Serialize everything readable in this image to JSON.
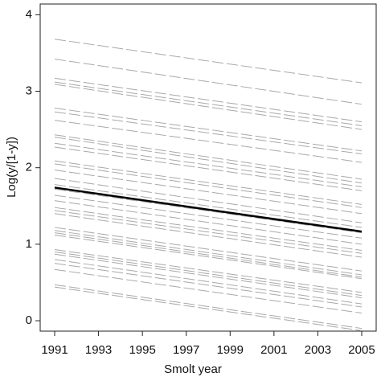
{
  "chart_data": {
    "type": "line",
    "x_label": "Smolt year",
    "y_label": "Log(y/[1-y])",
    "x": [
      1991,
      2005
    ],
    "xlim": [
      1990.34,
      2005.66
    ],
    "ylim": [
      -0.136,
      4.14
    ],
    "xticks": [
      1991,
      1993,
      1995,
      1997,
      1999,
      2001,
      2003,
      2005
    ],
    "yticks": [
      0,
      1,
      2,
      3,
      4
    ],
    "line_color": "#a8a8a8",
    "dashed": true,
    "series": [
      {
        "values": [
          3.68,
          3.11
        ]
      },
      {
        "values": [
          3.42,
          2.83
        ]
      },
      {
        "values": [
          3.17,
          2.6
        ]
      },
      {
        "values": [
          3.12,
          2.55
        ]
      },
      {
        "values": [
          3.09,
          2.5
        ]
      },
      {
        "values": [
          2.78,
          2.22
        ]
      },
      {
        "values": [
          2.73,
          2.18
        ]
      },
      {
        "values": [
          2.62,
          2.07
        ]
      },
      {
        "values": [
          2.43,
          1.85
        ]
      },
      {
        "values": [
          2.4,
          1.8
        ]
      },
      {
        "values": [
          2.32,
          1.75
        ]
      },
      {
        "values": [
          2.27,
          1.7
        ]
      },
      {
        "values": [
          2.09,
          1.52
        ]
      },
      {
        "values": [
          2.05,
          1.48
        ]
      },
      {
        "values": [
          1.97,
          1.4
        ]
      },
      {
        "values": [
          1.86,
          1.28
        ]
      },
      {
        "values": [
          1.78,
          1.22
        ]
      },
      {
        "values": [
          1.72,
          1.15
        ]
      },
      {
        "values": [
          1.64,
          1.08
        ]
      },
      {
        "values": [
          1.57,
          1.0
        ]
      },
      {
        "values": [
          1.48,
          0.92
        ]
      },
      {
        "values": [
          1.44,
          0.88
        ]
      },
      {
        "values": [
          1.4,
          0.83
        ]
      },
      {
        "values": [
          1.22,
          0.65
        ]
      },
      {
        "values": [
          1.18,
          0.6
        ]
      },
      {
        "values": [
          1.15,
          0.57
        ]
      },
      {
        "values": [
          1.12,
          0.55
        ]
      },
      {
        "values": [
          0.93,
          0.37
        ]
      },
      {
        "values": [
          0.9,
          0.33
        ]
      },
      {
        "values": [
          0.87,
          0.3
        ]
      },
      {
        "values": [
          0.8,
          0.22
        ]
      },
      {
        "values": [
          0.75,
          0.18
        ]
      },
      {
        "values": [
          0.67,
          0.1
        ]
      },
      {
        "values": [
          0.47,
          -0.1
        ]
      },
      {
        "values": [
          0.44,
          -0.13
        ]
      },
      {
        "values": [
          1.74,
          1.165
        ],
        "color": "#000000",
        "dashed": false,
        "width": 2.5
      }
    ]
  }
}
